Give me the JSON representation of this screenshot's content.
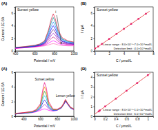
{
  "chart_data": [
    {
      "type": "line",
      "panel_label": "(A)",
      "title": "Sunset yellow",
      "x_label": "Potential / mV",
      "y_label": "Current / 1E-5A",
      "x": [
        400,
        500,
        600,
        650,
        700,
        740,
        770,
        790,
        810,
        840,
        880,
        940,
        1000
      ],
      "series": [
        {
          "color": "#ff69b4",
          "values": [
            0.4,
            0.5,
            0.6,
            0.7,
            0.8,
            0.95,
            1.1,
            1.15,
            1.1,
            0.95,
            0.85,
            0.8,
            0.8
          ]
        },
        {
          "color": "#ff00ff",
          "values": [
            0.4,
            0.5,
            0.65,
            0.75,
            0.9,
            1.2,
            1.5,
            1.6,
            1.5,
            1.2,
            1.0,
            0.9,
            0.9
          ]
        },
        {
          "color": "#c71585",
          "values": [
            0.45,
            0.55,
            0.7,
            0.8,
            1.0,
            1.5,
            2.0,
            2.2,
            2.0,
            1.5,
            1.2,
            1.0,
            1.0
          ]
        },
        {
          "color": "#9400d3",
          "values": [
            0.45,
            0.55,
            0.7,
            0.85,
            1.1,
            1.8,
            2.5,
            2.8,
            2.5,
            1.8,
            1.3,
            1.1,
            1.05
          ]
        },
        {
          "color": "#4b0082",
          "values": [
            0.5,
            0.6,
            0.75,
            0.9,
            1.2,
            2.1,
            3.0,
            3.4,
            3.0,
            2.1,
            1.5,
            1.2,
            1.1
          ]
        },
        {
          "color": "#0000ff",
          "values": [
            0.5,
            0.6,
            0.8,
            0.95,
            1.3,
            2.4,
            3.5,
            4.0,
            3.5,
            2.4,
            1.6,
            1.3,
            1.2
          ]
        },
        {
          "color": "#1e90ff",
          "values": [
            0.5,
            0.65,
            0.8,
            1.0,
            1.4,
            2.7,
            4.0,
            4.6,
            4.0,
            2.7,
            1.8,
            1.4,
            1.3
          ]
        },
        {
          "color": "#008b8b",
          "values": [
            0.55,
            0.65,
            0.85,
            1.05,
            1.5,
            3.0,
            4.6,
            5.3,
            4.6,
            3.0,
            1.9,
            1.5,
            1.35
          ]
        },
        {
          "color": "#dc143c",
          "values": [
            0.55,
            0.7,
            0.9,
            1.1,
            1.6,
            3.3,
            5.1,
            5.9,
            5.1,
            3.3,
            2.1,
            1.6,
            1.4
          ]
        }
      ],
      "curve_labels": [
        "a",
        "i"
      ],
      "xlim": [
        400,
        1000
      ],
      "xticks": [
        400,
        600,
        800,
        1000
      ],
      "ylim": [
        0,
        7
      ],
      "yticks": [
        0,
        2,
        4,
        6
      ]
    },
    {
      "type": "scatter",
      "panel_label": "(B)",
      "title": "Sunset yellow",
      "x_label": "C / μmol/L",
      "y_label": "I / μA",
      "series": [
        {
          "type": "scatter",
          "marker": "square",
          "color": "#e8368f",
          "x": [
            0.08,
            0.5,
            1,
            2,
            3,
            4,
            5,
            6,
            7
          ],
          "values": [
            0.4,
            0.7,
            1.1,
            1.9,
            2.7,
            3.5,
            4.3,
            5.1,
            5.9
          ]
        },
        {
          "type": "line",
          "color": "#e31a1c",
          "x": [
            0,
            7.5
          ],
          "values": [
            0.3,
            6.3
          ]
        }
      ],
      "annotations": [
        "Linear range : 8.0×10⁻⁸~7.0×10⁻⁶mol/L",
        "Detection limit : 4.0×10⁻⁸mol/L"
      ],
      "xlim": [
        0,
        8
      ],
      "xticks": [
        0,
        2,
        4,
        6,
        8
      ],
      "ylim": [
        0,
        7
      ],
      "yticks": [
        0,
        2,
        4,
        6
      ]
    },
    {
      "type": "line",
      "panel_label": "(A)",
      "x_label": "Potential / mV",
      "y_label": "Current / 1E-5A",
      "x": [
        300,
        400,
        500,
        550,
        600,
        630,
        650,
        670,
        700,
        750,
        800,
        850,
        880,
        900,
        920,
        960,
        1000
      ],
      "series": [
        {
          "color": "#ff00ff",
          "values": [
            0.3,
            0.4,
            0.5,
            0.6,
            0.8,
            0.95,
            1.0,
            0.95,
            0.8,
            0.7,
            0.8,
            1.1,
            1.6,
            2.0,
            1.7,
            1.1,
            0.9
          ]
        },
        {
          "color": "#9932cc",
          "values": [
            0.3,
            0.4,
            0.5,
            0.65,
            0.95,
            1.4,
            1.6,
            1.45,
            1.0,
            0.75,
            0.8,
            1.1,
            1.6,
            2.05,
            1.75,
            1.1,
            0.9
          ]
        },
        {
          "color": "#0000cd",
          "values": [
            0.3,
            0.4,
            0.55,
            0.7,
            1.1,
            1.85,
            2.2,
            1.95,
            1.2,
            0.8,
            0.85,
            1.15,
            1.65,
            2.1,
            1.8,
            1.15,
            0.95
          ]
        },
        {
          "color": "#00bfff",
          "values": [
            0.35,
            0.45,
            0.55,
            0.75,
            1.25,
            2.3,
            2.8,
            2.45,
            1.4,
            0.85,
            0.85,
            1.15,
            1.7,
            2.15,
            1.8,
            1.15,
            0.95
          ]
        },
        {
          "color": "#228b22",
          "values": [
            0.35,
            0.45,
            0.6,
            0.8,
            1.4,
            2.75,
            3.4,
            2.95,
            1.6,
            0.9,
            0.9,
            1.2,
            1.7,
            2.2,
            1.85,
            1.2,
            1.0
          ]
        },
        {
          "color": "#ff8c00",
          "values": [
            0.35,
            0.5,
            0.6,
            0.85,
            1.55,
            3.2,
            4.0,
            3.45,
            1.8,
            0.95,
            0.9,
            1.2,
            1.75,
            2.25,
            1.9,
            1.2,
            1.0
          ]
        },
        {
          "color": "#e6007e",
          "values": [
            0.4,
            0.5,
            0.65,
            0.9,
            1.7,
            3.65,
            4.6,
            3.95,
            2.0,
            1.0,
            0.95,
            1.25,
            1.8,
            2.3,
            1.9,
            1.25,
            1.0
          ]
        }
      ],
      "peak_labels": [
        "Sunset yellow",
        "Lemon yellow"
      ],
      "xlim": [
        300,
        1000
      ],
      "xticks": [
        400,
        600,
        800,
        1000
      ],
      "ylim": [
        0,
        6
      ],
      "yticks": [
        0,
        2,
        4,
        6
      ]
    },
    {
      "type": "scatter",
      "panel_label": "(B)",
      "title": "Sunset yellow",
      "x_label": "C / μmol/L",
      "y_label": "I / μA",
      "series": [
        {
          "type": "scatter",
          "marker": "square",
          "color": "#e8368f",
          "x": [
            0.08,
            0.1,
            0.2,
            0.4,
            0.6,
            0.8,
            1.0
          ],
          "values": [
            0.5,
            0.6,
            1.0,
            1.8,
            2.6,
            3.4,
            4.2
          ]
        },
        {
          "type": "line",
          "color": "#e31a1c",
          "x": [
            0,
            1.05
          ],
          "values": [
            0.2,
            4.4
          ]
        }
      ],
      "annotations": [
        "Linear range : 8.0×10⁻⁸~1.0×10⁻⁶mol/L",
        "Detection limit : 6.0×10⁻⁸mol/L"
      ],
      "xlim": [
        0,
        1.1
      ],
      "xticks": [
        0,
        0.2,
        0.4,
        0.6,
        0.8,
        1
      ],
      "ylim": [
        0,
        4.5
      ],
      "yticks": [
        0,
        1,
        2,
        3,
        4
      ]
    }
  ]
}
